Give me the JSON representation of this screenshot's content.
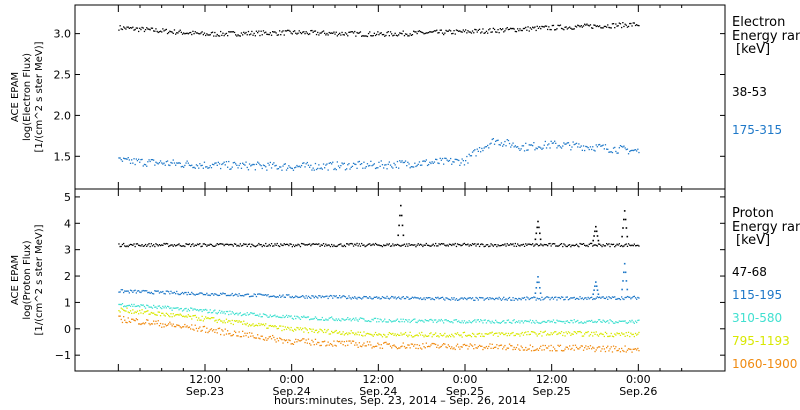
{
  "chart_data": [
    {
      "type": "scatter",
      "panel": "electron",
      "ylabel": [
        "ACE EPAM",
        "log(Electron Flux)",
        "[1/(cm^2 s ster MeV)]"
      ],
      "ylim": [
        1.1,
        3.35
      ],
      "yticks": [
        {
          "label": "1.5",
          "v": 1.5
        },
        {
          "label": "2.0",
          "v": 2.0
        },
        {
          "label": "2.5",
          "v": 2.5
        },
        {
          "label": "3.0",
          "v": 3.0
        }
      ],
      "legend_title": [
        "Electron",
        "Energy ran",
        "[keV]"
      ],
      "series": [
        {
          "name": "38-53",
          "color": "#000000",
          "knots": [
            [
              0,
              3.08
            ],
            [
              12,
              3.0
            ],
            [
              24,
              3.02
            ],
            [
              36,
              3.0
            ],
            [
              48,
              3.03
            ],
            [
              60,
              3.08
            ],
            [
              72,
              3.12
            ]
          ],
          "noise": 0.03,
          "spikes": []
        },
        {
          "name": "175-315",
          "color": "#1e78c8",
          "knots": [
            [
              0,
              1.45
            ],
            [
              12,
              1.4
            ],
            [
              24,
              1.38
            ],
            [
              36,
              1.4
            ],
            [
              48,
              1.45
            ],
            [
              50,
              1.6
            ],
            [
              52,
              1.7
            ],
            [
              56,
              1.62
            ],
            [
              60,
              1.65
            ],
            [
              66,
              1.62
            ],
            [
              72,
              1.57
            ]
          ],
          "noise": 0.05,
          "spikes": []
        }
      ]
    },
    {
      "type": "scatter",
      "panel": "proton",
      "ylabel": [
        "ACE EPAM",
        "log(Proton Flux)",
        "[1/(cm^2 s ster MeV)]"
      ],
      "ylim": [
        -1.6,
        5.3
      ],
      "yticks": [
        {
          "label": "−1",
          "v": -1
        },
        {
          "label": "0",
          "v": 0
        },
        {
          "label": "1",
          "v": 1
        },
        {
          "label": "2",
          "v": 2
        },
        {
          "label": "3",
          "v": 3
        },
        {
          "label": "4",
          "v": 4
        },
        {
          "label": "5",
          "v": 5
        }
      ],
      "legend_title": [
        "Proton",
        "Energy ran",
        "[keV]"
      ],
      "series": [
        {
          "name": "47-68",
          "color": "#000000",
          "knots": [
            [
              0,
              3.2
            ],
            [
              72,
              3.2
            ]
          ],
          "noise": 0.06,
          "spikes": [
            [
              39,
              4.7
            ],
            [
              58,
              4.1
            ],
            [
              66,
              3.9
            ],
            [
              70,
              4.5
            ]
          ]
        },
        {
          "name": "115-195",
          "color": "#1e78c8",
          "knots": [
            [
              0,
              1.45
            ],
            [
              12,
              1.35
            ],
            [
              24,
              1.25
            ],
            [
              48,
              1.15
            ],
            [
              72,
              1.2
            ]
          ],
          "noise": 0.06,
          "spikes": [
            [
              58,
              2.0
            ],
            [
              66,
              1.8
            ],
            [
              70,
              2.5
            ]
          ]
        },
        {
          "name": "310-580",
          "color": "#40e0d0",
          "knots": [
            [
              0,
              0.95
            ],
            [
              12,
              0.7
            ],
            [
              24,
              0.45
            ],
            [
              36,
              0.35
            ],
            [
              48,
              0.3
            ],
            [
              60,
              0.3
            ],
            [
              72,
              0.3
            ]
          ],
          "noise": 0.07,
          "spikes": []
        },
        {
          "name": "795-1193",
          "color": "#d8e800",
          "knots": [
            [
              0,
              0.75
            ],
            [
              12,
              0.4
            ],
            [
              24,
              0.0
            ],
            [
              36,
              -0.2
            ],
            [
              48,
              -0.2
            ],
            [
              60,
              -0.15
            ],
            [
              72,
              -0.2
            ]
          ],
          "noise": 0.09,
          "spikes": []
        },
        {
          "name": "1060-1900",
          "color": "#f08a10",
          "knots": [
            [
              0,
              0.4
            ],
            [
              12,
              0.0
            ],
            [
              24,
              -0.45
            ],
            [
              36,
              -0.6
            ],
            [
              48,
              -0.65
            ],
            [
              60,
              -0.7
            ],
            [
              72,
              -0.75
            ]
          ],
          "noise": 0.12,
          "spikes": []
        }
      ]
    }
  ],
  "x_axis": {
    "xlim_hours": [
      -6,
      84
    ],
    "major_ticks": [
      {
        "h": 12,
        "time": "12:00",
        "date": "Sep.23"
      },
      {
        "h": 24,
        "time": "0:00",
        "date": "Sep.24"
      },
      {
        "h": 36,
        "time": "12:00",
        "date": "Sep.24"
      },
      {
        "h": 48,
        "time": "0:00",
        "date": "Sep.25"
      },
      {
        "h": 60,
        "time": "12:00",
        "date": "Sep.25"
      },
      {
        "h": 72,
        "time": "0:00",
        "date": "Sep.26"
      }
    ],
    "xlabel": "hours:minutes, Sep. 23, 2014 – Sep. 26, 2014"
  }
}
